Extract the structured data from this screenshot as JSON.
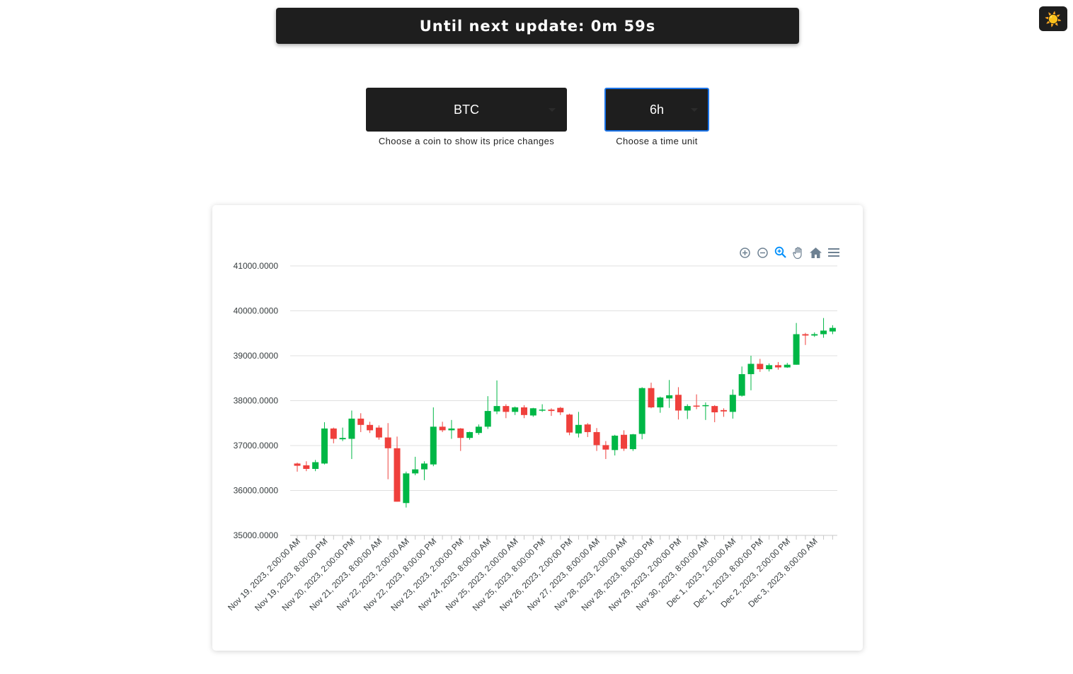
{
  "header": {
    "timer_text": "Until next update: 0m 59s"
  },
  "theme_toggle": {
    "icon": "sun-icon",
    "glyph": "☀️"
  },
  "controls": {
    "coin_select": {
      "value": "BTC",
      "hint": "Choose a coin to show its price changes"
    },
    "unit_select": {
      "value": "6h",
      "hint": "Choose a time unit"
    }
  },
  "toolbar": {
    "icons": [
      "zoom-in-icon",
      "zoom-out-icon",
      "selection-zoom-icon",
      "pan-icon",
      "home-icon",
      "menu-icon"
    ]
  },
  "colors": {
    "up": "#00b746",
    "down": "#ef403c",
    "accent": "#1a73e8",
    "dark": "#1e1e1e"
  },
  "chart_data": {
    "type": "candlestick",
    "ylim": [
      35000,
      41000
    ],
    "yticks": [
      "41000.0000",
      "40000.0000",
      "39000.0000",
      "38000.0000",
      "37000.0000",
      "36000.0000",
      "35000.0000"
    ],
    "xlabels": [
      "Nov 19, 2023, 2:00:00 AM",
      "Nov 19, 2023, 8:00:00 PM",
      "Nov 20, 2023, 2:00:00 PM",
      "Nov 21, 2023, 8:00:00 AM",
      "Nov 22, 2023, 2:00:00 AM",
      "Nov 22, 2023, 8:00:00 PM",
      "Nov 23, 2023, 2:00:00 PM",
      "Nov 24, 2023, 8:00:00 AM",
      "Nov 25, 2023, 2:00:00 AM",
      "Nov 25, 2023, 8:00:00 PM",
      "Nov 26, 2023, 2:00:00 PM",
      "Nov 27, 2023, 8:00:00 AM",
      "Nov 28, 2023, 2:00:00 AM",
      "Nov 28, 2023, 8:00:00 PM",
      "Nov 29, 2023, 2:00:00 PM",
      "Nov 30, 2023, 8:00:00 AM",
      "Dec 1, 2023, 2:00:00 AM",
      "Dec 1, 2023, 8:00:00 PM",
      "Dec 2, 2023, 2:00:00 PM",
      "Dec 3, 2023, 8:00:00 AM"
    ],
    "candles": [
      {
        "o": 36600,
        "h": 36620,
        "l": 36420,
        "c": 36550
      },
      {
        "o": 36560,
        "h": 36650,
        "l": 36430,
        "c": 36480
      },
      {
        "o": 36480,
        "h": 36680,
        "l": 36430,
        "c": 36630
      },
      {
        "o": 36600,
        "h": 37520,
        "l": 36580,
        "c": 37380
      },
      {
        "o": 37380,
        "h": 37400,
        "l": 37050,
        "c": 37150
      },
      {
        "o": 37140,
        "h": 37400,
        "l": 37100,
        "c": 37170
      },
      {
        "o": 37150,
        "h": 37780,
        "l": 36700,
        "c": 37600
      },
      {
        "o": 37600,
        "h": 37720,
        "l": 37300,
        "c": 37460
      },
      {
        "o": 37460,
        "h": 37530,
        "l": 37280,
        "c": 37340
      },
      {
        "o": 37400,
        "h": 37450,
        "l": 37130,
        "c": 37180
      },
      {
        "o": 37180,
        "h": 37500,
        "l": 36250,
        "c": 36940
      },
      {
        "o": 36940,
        "h": 37200,
        "l": 35750,
        "c": 35750
      },
      {
        "o": 35720,
        "h": 36420,
        "l": 35620,
        "c": 36380
      },
      {
        "o": 36380,
        "h": 36750,
        "l": 36340,
        "c": 36470
      },
      {
        "o": 36470,
        "h": 36650,
        "l": 36230,
        "c": 36600
      },
      {
        "o": 36580,
        "h": 37850,
        "l": 36540,
        "c": 37420
      },
      {
        "o": 37420,
        "h": 37530,
        "l": 37300,
        "c": 37340
      },
      {
        "o": 37340,
        "h": 37570,
        "l": 37150,
        "c": 37380
      },
      {
        "o": 37380,
        "h": 37390,
        "l": 36880,
        "c": 37170
      },
      {
        "o": 37170,
        "h": 37310,
        "l": 37130,
        "c": 37300
      },
      {
        "o": 37280,
        "h": 37470,
        "l": 37240,
        "c": 37420
      },
      {
        "o": 37420,
        "h": 38100,
        "l": 37370,
        "c": 37770
      },
      {
        "o": 37760,
        "h": 38450,
        "l": 37700,
        "c": 37880
      },
      {
        "o": 37880,
        "h": 37920,
        "l": 37610,
        "c": 37750
      },
      {
        "o": 37750,
        "h": 37870,
        "l": 37680,
        "c": 37850
      },
      {
        "o": 37850,
        "h": 37900,
        "l": 37610,
        "c": 37680
      },
      {
        "o": 37670,
        "h": 37840,
        "l": 37640,
        "c": 37830
      },
      {
        "o": 37790,
        "h": 37920,
        "l": 37750,
        "c": 37800
      },
      {
        "o": 37800,
        "h": 37830,
        "l": 37660,
        "c": 37770
      },
      {
        "o": 37840,
        "h": 37860,
        "l": 37680,
        "c": 37740
      },
      {
        "o": 37690,
        "h": 37710,
        "l": 37230,
        "c": 37290
      },
      {
        "o": 37270,
        "h": 37750,
        "l": 37180,
        "c": 37460
      },
      {
        "o": 37470,
        "h": 37500,
        "l": 37190,
        "c": 37300
      },
      {
        "o": 37300,
        "h": 37390,
        "l": 36880,
        "c": 37010
      },
      {
        "o": 37010,
        "h": 37100,
        "l": 36700,
        "c": 36910
      },
      {
        "o": 36900,
        "h": 37240,
        "l": 36780,
        "c": 37220
      },
      {
        "o": 37240,
        "h": 37340,
        "l": 36880,
        "c": 36930
      },
      {
        "o": 36920,
        "h": 37260,
        "l": 36880,
        "c": 37250
      },
      {
        "o": 37260,
        "h": 38300,
        "l": 37140,
        "c": 38280
      },
      {
        "o": 38280,
        "h": 38400,
        "l": 37830,
        "c": 37850
      },
      {
        "o": 37850,
        "h": 38090,
        "l": 37730,
        "c": 38070
      },
      {
        "o": 38050,
        "h": 38460,
        "l": 37840,
        "c": 38120
      },
      {
        "o": 38130,
        "h": 38300,
        "l": 37580,
        "c": 37780
      },
      {
        "o": 37780,
        "h": 37920,
        "l": 37590,
        "c": 37880
      },
      {
        "o": 37890,
        "h": 38140,
        "l": 37810,
        "c": 37880
      },
      {
        "o": 37900,
        "h": 37960,
        "l": 37570,
        "c": 37900
      },
      {
        "o": 37880,
        "h": 37900,
        "l": 37520,
        "c": 37740
      },
      {
        "o": 37790,
        "h": 37830,
        "l": 37640,
        "c": 37760
      },
      {
        "o": 37750,
        "h": 38250,
        "l": 37600,
        "c": 38130
      },
      {
        "o": 38110,
        "h": 38760,
        "l": 38090,
        "c": 38590
      },
      {
        "o": 38590,
        "h": 39000,
        "l": 38230,
        "c": 38820
      },
      {
        "o": 38820,
        "h": 38930,
        "l": 38640,
        "c": 38700
      },
      {
        "o": 38700,
        "h": 38830,
        "l": 38650,
        "c": 38790
      },
      {
        "o": 38790,
        "h": 38860,
        "l": 38690,
        "c": 38740
      },
      {
        "o": 38740,
        "h": 38840,
        "l": 38730,
        "c": 38800
      },
      {
        "o": 38800,
        "h": 39730,
        "l": 38800,
        "c": 39480
      },
      {
        "o": 39480,
        "h": 39510,
        "l": 39240,
        "c": 39450
      },
      {
        "o": 39450,
        "h": 39520,
        "l": 39420,
        "c": 39480
      },
      {
        "o": 39480,
        "h": 39840,
        "l": 39400,
        "c": 39560
      },
      {
        "o": 39540,
        "h": 39680,
        "l": 39480,
        "c": 39620
      }
    ]
  }
}
